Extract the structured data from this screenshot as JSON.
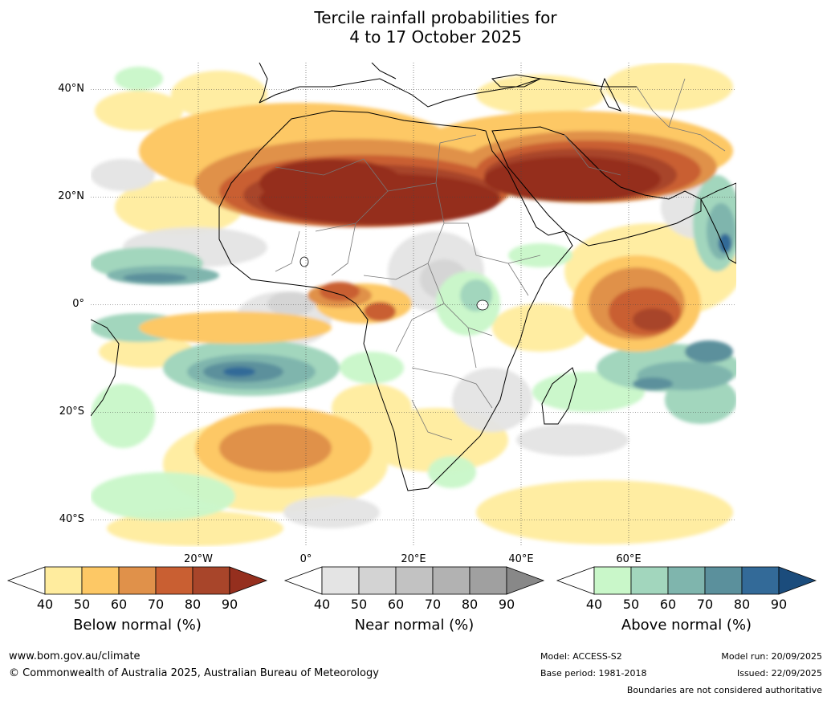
{
  "title": {
    "line1": "Tercile rainfall probabilities for",
    "line2": "4 to 17 October 2025"
  },
  "axes": {
    "lat_labels": [
      "40°N",
      "20°N",
      "0°",
      "20°S",
      "40°S"
    ],
    "lat_values": [
      40,
      20,
      0,
      -20,
      -40
    ],
    "lon_labels": [
      "20°W",
      "0°",
      "20°E",
      "40°E",
      "60°E"
    ],
    "lon_values": [
      -20,
      0,
      20,
      40,
      60
    ],
    "lon_range": [
      -40,
      80
    ],
    "lat_range": [
      -45,
      45
    ]
  },
  "legends": [
    {
      "title": "Below normal (%)",
      "ticks": [
        "40",
        "50",
        "60",
        "70",
        "80",
        "90"
      ],
      "colors": [
        "#ffffff",
        "#ffec9e",
        "#fdc865",
        "#e0914a",
        "#c95f32",
        "#a8452a",
        "#952f1e"
      ]
    },
    {
      "title": "Near normal (%)",
      "ticks": [
        "40",
        "50",
        "60",
        "70",
        "80",
        "90"
      ],
      "colors": [
        "#ffffff",
        "#e4e4e4",
        "#d3d3d3",
        "#c2c2c2",
        "#b2b2b2",
        "#a0a0a0",
        "#888888"
      ]
    },
    {
      "title": "Above normal (%)",
      "ticks": [
        "40",
        "50",
        "60",
        "70",
        "80",
        "90"
      ],
      "colors": [
        "#ffffff",
        "#c9f7c9",
        "#a2d6bd",
        "#7fb5ad",
        "#5b909c",
        "#336a98",
        "#1b4c7c"
      ]
    }
  ],
  "footer": {
    "website": "www.bom.gov.au/climate",
    "copyright": "© Commonwealth of Australia 2025, Australian Bureau of Meteorology",
    "model": "Model: ACCESS-S2",
    "base_period": "Base period: 1981-2018",
    "model_run": "Model run: 20/09/2025",
    "issued": "Issued: 22/09/2025",
    "boundaries_note": "Boundaries are not considered authoritative"
  }
}
